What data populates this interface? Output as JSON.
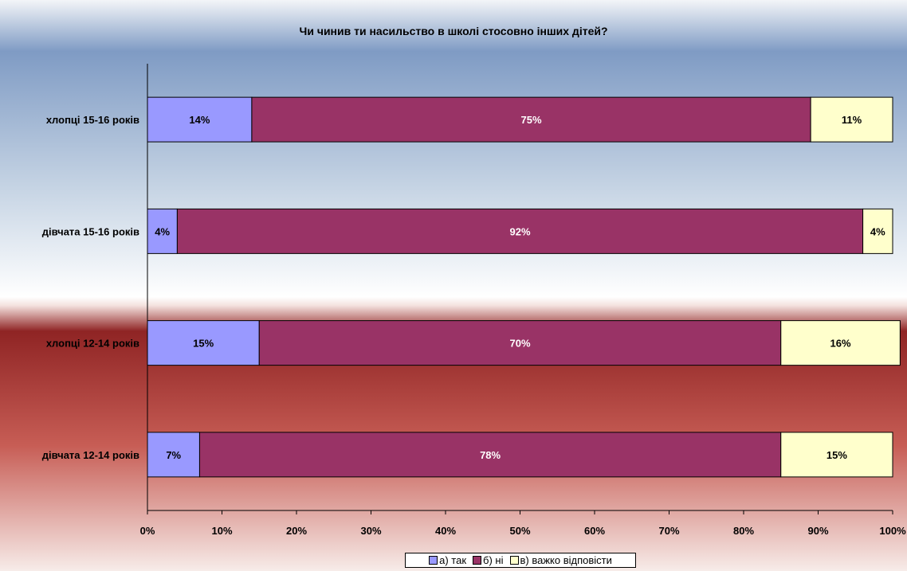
{
  "chart_data": {
    "type": "bar",
    "orientation": "horizontal",
    "stacked": "percent",
    "title": "Чи чинив ти насильство в школі стосовно інших дітей?",
    "categories": [
      "хлопці 15-16 років",
      "дівчата 15-16 років",
      "хлопці 12-14 років",
      "дівчата 12-14 років"
    ],
    "series": [
      {
        "name": "а) так",
        "color": "#9999ff",
        "values": [
          14,
          4,
          15,
          7
        ]
      },
      {
        "name": "б) ні",
        "color": "#993366",
        "values": [
          75,
          92,
          70,
          78
        ]
      },
      {
        "name": "в) важко відповісти",
        "color": "#ffffcc",
        "values": [
          11,
          4,
          16,
          15
        ]
      }
    ],
    "xlim": [
      0,
      100
    ],
    "xticks": [
      "0%",
      "10%",
      "20%",
      "30%",
      "40%",
      "50%",
      "60%",
      "70%",
      "80%",
      "90%",
      "100%"
    ],
    "data_labels": [
      [
        "14%",
        "75%",
        "11%"
      ],
      [
        "4%",
        "92%",
        "4%"
      ],
      [
        "15%",
        "70%",
        "16%"
      ],
      [
        "7%",
        "78%",
        "15%"
      ]
    ],
    "grid": false,
    "legend_position": "bottom"
  }
}
